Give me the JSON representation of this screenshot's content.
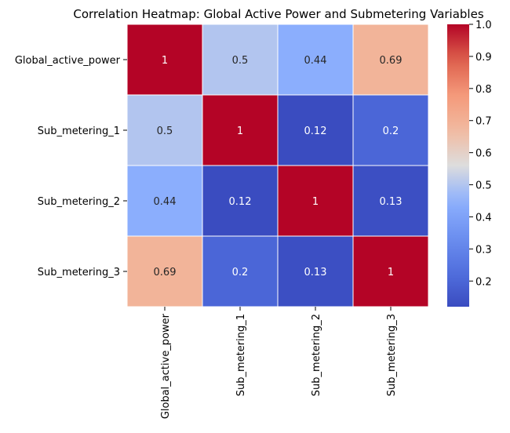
{
  "chart_data": {
    "type": "heatmap",
    "title": "Correlation Heatmap: Global Active Power and Submetering Variables",
    "rows": [
      "Global_active_power",
      "Sub_metering_1",
      "Sub_metering_2",
      "Sub_metering_3"
    ],
    "columns": [
      "Global_active_power",
      "Sub_metering_1",
      "Sub_metering_2",
      "Sub_metering_3"
    ],
    "values": [
      [
        1,
        0.5,
        0.44,
        0.69
      ],
      [
        0.5,
        1,
        0.12,
        0.2
      ],
      [
        0.44,
        0.12,
        1,
        0.13
      ],
      [
        0.69,
        0.2,
        0.13,
        1
      ]
    ],
    "value_labels": [
      [
        "1",
        "0.5",
        "0.44",
        "0.69"
      ],
      [
        "0.5",
        "1",
        "0.12",
        "0.2"
      ],
      [
        "0.44",
        "0.12",
        "1",
        "0.13"
      ],
      [
        "0.69",
        "0.2",
        "0.13",
        "1"
      ]
    ],
    "colormap": "coolwarm",
    "colorbar": {
      "min": 0.12,
      "max": 1.0,
      "ticks": [
        0.2,
        0.3,
        0.4,
        0.5,
        0.6,
        0.7,
        0.8,
        0.9,
        1.0
      ],
      "tick_labels": [
        "0.2",
        "0.3",
        "0.4",
        "0.5",
        "0.6",
        "0.7",
        "0.8",
        "0.9",
        "1.0"
      ]
    },
    "cell_border_color": "#ffffff"
  }
}
